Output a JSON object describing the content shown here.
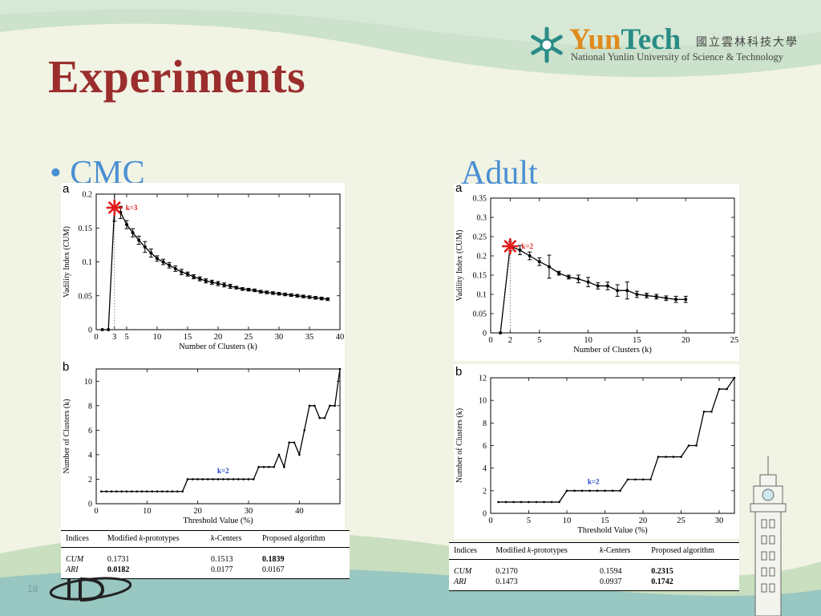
{
  "slide": {
    "title": "Experiments",
    "slide_number": "18",
    "bullet_symbol": "•",
    "left_section_label": "CMC",
    "right_section_label": "Adult"
  },
  "logo": {
    "name_part1": "Yun",
    "name_part2": "Tech",
    "chinese_name": "國立雲林科技大學",
    "english_name": "National Yunlin University of Science & Technology"
  },
  "colors": {
    "title": "#9b2d2d",
    "bullet_text": "#4a8fd3",
    "logo_teal": "#2a8c86",
    "logo_orange": "#e08a1e",
    "marker_red": "#e21b1b",
    "annotation_blue": "#1a3fd1"
  },
  "chart_data": [
    {
      "id": "cmc_a",
      "panel_label": "a",
      "type": "line",
      "xlabel": "Number of Clusters (k)",
      "ylabel": "Vadility Index (CUM)",
      "xlim": [
        0,
        40
      ],
      "ylim": [
        0,
        0.2
      ],
      "xticks": [
        0,
        3,
        5,
        10,
        15,
        20,
        25,
        30,
        35,
        40
      ],
      "yticks": [
        0,
        0.05,
        0.1,
        0.15,
        0.2
      ],
      "annotation": "k=3",
      "highlight_k": 3,
      "error_bars": true,
      "x": [
        1,
        2,
        3,
        4,
        5,
        6,
        7,
        8,
        9,
        10,
        11,
        12,
        13,
        14,
        15,
        16,
        17,
        18,
        19,
        20,
        21,
        22,
        23,
        24,
        25,
        26,
        27,
        28,
        29,
        30,
        31,
        32,
        33,
        34,
        35,
        36,
        37,
        38
      ],
      "y": [
        0,
        0,
        0.18,
        0.173,
        0.155,
        0.143,
        0.132,
        0.122,
        0.113,
        0.105,
        0.1,
        0.095,
        0.09,
        0.085,
        0.082,
        0.078,
        0.075,
        0.072,
        0.07,
        0.068,
        0.066,
        0.064,
        0.062,
        0.06,
        0.059,
        0.058,
        0.056,
        0.055,
        0.054,
        0.053,
        0.052,
        0.051,
        0.05,
        0.049,
        0.048,
        0.047,
        0.046,
        0.045
      ],
      "err": [
        0,
        0,
        0.02,
        0.009,
        0.006,
        0.006,
        0.006,
        0.008,
        0.006,
        0.004,
        0.004,
        0.004,
        0.004,
        0.004,
        0.003,
        0.003,
        0.003,
        0.003,
        0.003,
        0.003,
        0.003,
        0.003,
        0.002,
        0.002,
        0.002,
        0.002,
        0.002,
        0.002,
        0.002,
        0.002,
        0.002,
        0.002,
        0.002,
        0.002,
        0.002,
        0.002,
        0.002,
        0.002
      ]
    },
    {
      "id": "cmc_b",
      "panel_label": "b",
      "type": "line",
      "xlabel": "Threshold Value (%)",
      "ylabel": "Number of Clusters (k)",
      "xlim": [
        0,
        48
      ],
      "ylim": [
        0,
        11
      ],
      "xticks": [
        0,
        10,
        20,
        30,
        40
      ],
      "yticks": [
        0,
        2,
        4,
        6,
        8,
        10
      ],
      "annotation": "k=2",
      "annotation_at": [
        25,
        2.5
      ],
      "x": [
        1,
        2,
        3,
        4,
        5,
        6,
        7,
        8,
        9,
        10,
        11,
        12,
        13,
        14,
        15,
        16,
        17,
        18,
        19,
        20,
        21,
        22,
        23,
        24,
        25,
        26,
        27,
        28,
        29,
        30,
        31,
        32,
        33,
        34,
        35,
        36,
        37,
        38,
        39,
        40,
        41,
        42,
        43,
        44,
        45,
        46,
        47,
        48
      ],
      "y": [
        1,
        1,
        1,
        1,
        1,
        1,
        1,
        1,
        1,
        1,
        1,
        1,
        1,
        1,
        1,
        1,
        1,
        2,
        2,
        2,
        2,
        2,
        2,
        2,
        2,
        2,
        2,
        2,
        2,
        2,
        2,
        3,
        3,
        3,
        3,
        4,
        3,
        5,
        5,
        4,
        6,
        8,
        8,
        7,
        7,
        8,
        8,
        11
      ]
    },
    {
      "id": "adult_a",
      "panel_label": "a",
      "type": "line",
      "xlabel": "Number of Clusters (k)",
      "ylabel": "Vadility Index (CUM)",
      "xlim": [
        0,
        25
      ],
      "ylim": [
        0,
        0.35
      ],
      "xticks": [
        0,
        2,
        5,
        10,
        15,
        20,
        25
      ],
      "yticks": [
        0,
        0.05,
        0.1,
        0.15,
        0.2,
        0.25,
        0.3,
        0.35
      ],
      "annotation": "k=2",
      "highlight_k": 2,
      "error_bars": true,
      "x": [
        1,
        2,
        3,
        4,
        5,
        6,
        7,
        8,
        9,
        10,
        11,
        12,
        13,
        14,
        15,
        16,
        17,
        18,
        19,
        20
      ],
      "y": [
        0,
        0.225,
        0.215,
        0.2,
        0.185,
        0.172,
        0.155,
        0.145,
        0.14,
        0.132,
        0.122,
        0.122,
        0.11,
        0.11,
        0.1,
        0.097,
        0.094,
        0.09,
        0.087,
        0.087
      ],
      "err": [
        0,
        0.012,
        0.012,
        0.01,
        0.01,
        0.03,
        0.005,
        0.005,
        0.01,
        0.012,
        0.008,
        0.01,
        0.015,
        0.022,
        0.008,
        0.006,
        0.006,
        0.006,
        0.008,
        0.008
      ]
    },
    {
      "id": "adult_b",
      "panel_label": "b",
      "type": "line",
      "xlabel": "Threshold Value (%)",
      "ylabel": "Number of Clusters (k)",
      "xlim": [
        0,
        32
      ],
      "ylim": [
        0,
        12
      ],
      "xticks": [
        0,
        5,
        10,
        15,
        20,
        25,
        30
      ],
      "yticks": [
        0,
        2,
        4,
        6,
        8,
        10,
        12
      ],
      "annotation": "k=2",
      "annotation_at": [
        13.5,
        2.6
      ],
      "x": [
        1,
        2,
        3,
        4,
        5,
        6,
        7,
        8,
        9,
        10,
        11,
        12,
        13,
        14,
        15,
        16,
        17,
        18,
        19,
        20,
        21,
        22,
        23,
        24,
        25,
        26,
        27,
        28,
        29,
        30,
        31,
        32
      ],
      "y": [
        1,
        1,
        1,
        1,
        1,
        1,
        1,
        1,
        1,
        2,
        2,
        2,
        2,
        2,
        2,
        2,
        2,
        3,
        3,
        3,
        3,
        5,
        5,
        5,
        5,
        6,
        6,
        9,
        9,
        11,
        11,
        12
      ]
    }
  ],
  "tables": {
    "cmc": {
      "headers": [
        "Indices",
        "Modified k-prototypes",
        "k-Centers",
        "Proposed algorithm"
      ],
      "rows": [
        {
          "index": "CUM",
          "values": [
            "0.1731",
            "0.1513",
            "0.1839"
          ],
          "bold": [
            false,
            false,
            true
          ]
        },
        {
          "index": "ARI",
          "values": [
            "0.0182",
            "0.0177",
            "0.0167"
          ],
          "bold": [
            true,
            false,
            false
          ]
        }
      ]
    },
    "adult": {
      "headers": [
        "Indices",
        "Modified k-prototypes",
        "k-Centers",
        "Proposed algorithm"
      ],
      "rows": [
        {
          "index": "CUM",
          "values": [
            "0.2170",
            "0.1594",
            "0.2315"
          ],
          "bold": [
            false,
            false,
            true
          ]
        },
        {
          "index": "ARI",
          "values": [
            "0.1473",
            "0.0937",
            "0.1742"
          ],
          "bold": [
            false,
            false,
            true
          ]
        }
      ]
    }
  }
}
